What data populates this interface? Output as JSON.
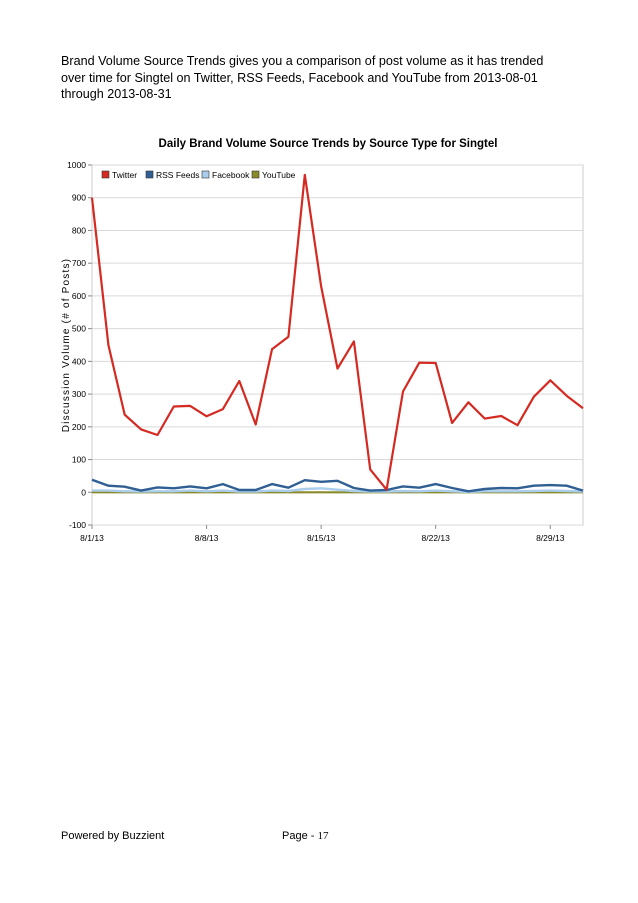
{
  "intro_text": "Brand Volume Source Trends gives you a comparison of post volume as it has trended over time for Singtel on Twitter, RSS Feeds, Facebook and YouTube from 2013-08-01 through 2013-08-31",
  "footer": {
    "powered_by": "Powered by Buzzient",
    "page_label": "Page - ",
    "page_number": "17"
  },
  "chart_data": {
    "type": "line",
    "title": "Daily Brand Volume Source Trends by Source Type for Singtel",
    "ylabel": "Discussion Volume (# of Posts)",
    "xlabel": "",
    "ylim": [
      -100,
      1000
    ],
    "yticks": [
      -100,
      0,
      100,
      200,
      300,
      400,
      500,
      600,
      700,
      800,
      900,
      1000
    ],
    "x_tick_labels": [
      {
        "day": 1,
        "label": "8/1/13"
      },
      {
        "day": 8,
        "label": "8/8/13"
      },
      {
        "day": 15,
        "label": "8/15/13"
      },
      {
        "day": 22,
        "label": "8/22/13"
      },
      {
        "day": 29,
        "label": "8/29/13"
      }
    ],
    "x": [
      "2013-08-01",
      "2013-08-02",
      "2013-08-03",
      "2013-08-04",
      "2013-08-05",
      "2013-08-06",
      "2013-08-07",
      "2013-08-08",
      "2013-08-09",
      "2013-08-10",
      "2013-08-11",
      "2013-08-12",
      "2013-08-13",
      "2013-08-14",
      "2013-08-15",
      "2013-08-16",
      "2013-08-17",
      "2013-08-18",
      "2013-08-19",
      "2013-08-20",
      "2013-08-21",
      "2013-08-22",
      "2013-08-23",
      "2013-08-24",
      "2013-08-25",
      "2013-08-26",
      "2013-08-27",
      "2013-08-28",
      "2013-08-29",
      "2013-08-30",
      "2013-08-31"
    ],
    "grid": true,
    "legend": "top-left",
    "series": [
      {
        "name": "Twitter",
        "color": "#d42a22",
        "values": [
          900,
          450,
          237,
          192,
          175,
          262,
          264,
          232,
          254,
          340,
          207,
          437,
          475,
          970,
          630,
          378,
          461,
          70,
          8,
          308,
          396,
          395,
          212,
          275,
          225,
          233,
          205,
          292,
          342,
          295,
          257
        ]
      },
      {
        "name": "RSS Feeds",
        "color": "#2f5f93",
        "values": [
          38,
          20,
          17,
          5,
          15,
          12,
          18,
          12,
          25,
          7,
          7,
          25,
          14,
          37,
          32,
          35,
          13,
          5,
          7,
          18,
          14,
          25,
          13,
          3,
          10,
          13,
          12,
          20,
          22,
          20,
          5
        ]
      },
      {
        "name": "Facebook",
        "color": "#a9cdea",
        "values": [
          5,
          5,
          3,
          2,
          3,
          3,
          5,
          3,
          5,
          2,
          2,
          5,
          4,
          10,
          12,
          8,
          4,
          2,
          2,
          4,
          3,
          5,
          3,
          1,
          3,
          3,
          3,
          4,
          5,
          4,
          2
        ]
      },
      {
        "name": "YouTube",
        "color": "#8a8a2b",
        "values": [
          0,
          0,
          0,
          0,
          0,
          0,
          0,
          0,
          0,
          0,
          0,
          0,
          0,
          0,
          0,
          0,
          0,
          0,
          0,
          0,
          0,
          0,
          0,
          0,
          0,
          0,
          0,
          0,
          0,
          0,
          0
        ]
      }
    ]
  }
}
